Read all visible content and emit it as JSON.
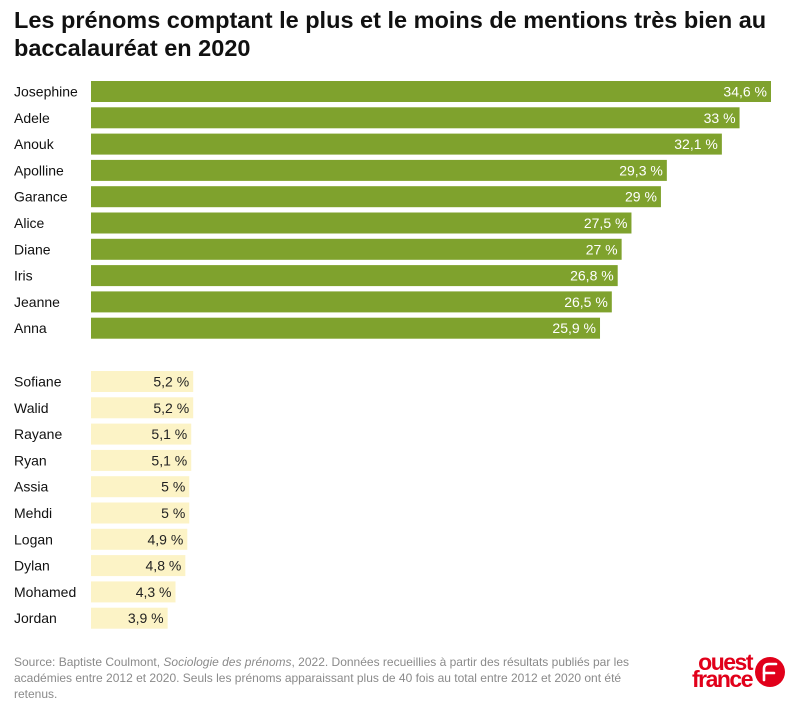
{
  "chart_data": {
    "type": "bar",
    "orientation": "horizontal",
    "title": "Les prénoms comptant le plus et le moins de mentions très bien au baccalauréat en 2020",
    "xlabel": "",
    "ylabel": "",
    "xlim": [
      0,
      34.6
    ],
    "grid": false,
    "series": [
      {
        "categories": [
          "Josephine",
          "Adele",
          "Anouk",
          "Apolline",
          "Garance",
          "Alice",
          "Diane",
          "Iris",
          "Jeanne",
          "Anna"
        ],
        "values": [
          34.6,
          33,
          32.1,
          29.3,
          29,
          27.5,
          27,
          26.8,
          26.5,
          25.9
        ],
        "labels": [
          "34,6 %",
          "33 %",
          "32,1 %",
          "29,3 %",
          "29 %",
          "27,5 %",
          "27 %",
          "26,8 %",
          "26,5 %",
          "25,9 %"
        ],
        "color": "#7fa22d"
      },
      {
        "categories": [
          "Sofiane",
          "Walid",
          "Rayane",
          "Ryan",
          "Assia",
          "Mehdi",
          "Logan",
          "Dylan",
          "Mohamed",
          "Jordan"
        ],
        "values": [
          5.2,
          5.2,
          5.1,
          5.1,
          5,
          5,
          4.9,
          4.8,
          4.3,
          3.9
        ],
        "labels": [
          "5,2 %",
          "5,2 %",
          "5,1 %",
          "5,1 %",
          "5 %",
          "5 %",
          "4,9 %",
          "4,8 %",
          "4,3 %",
          "3,9 %"
        ],
        "color": "#fcf3c6"
      }
    ]
  },
  "source": {
    "prefix": "Source: Baptiste Coulmont, ",
    "book": "Sociologie des prénoms",
    "suffix": ", 2022. Données recueillies à partir des résultats publiés par les académies entre 2012 et 2020. Seuls les prénoms apparaissant plus de 40 fois au total entre 2012 et 2020 ont été retenus."
  },
  "logo": {
    "line1": "ouest",
    "line2": "france",
    "color": "#e1001a"
  }
}
